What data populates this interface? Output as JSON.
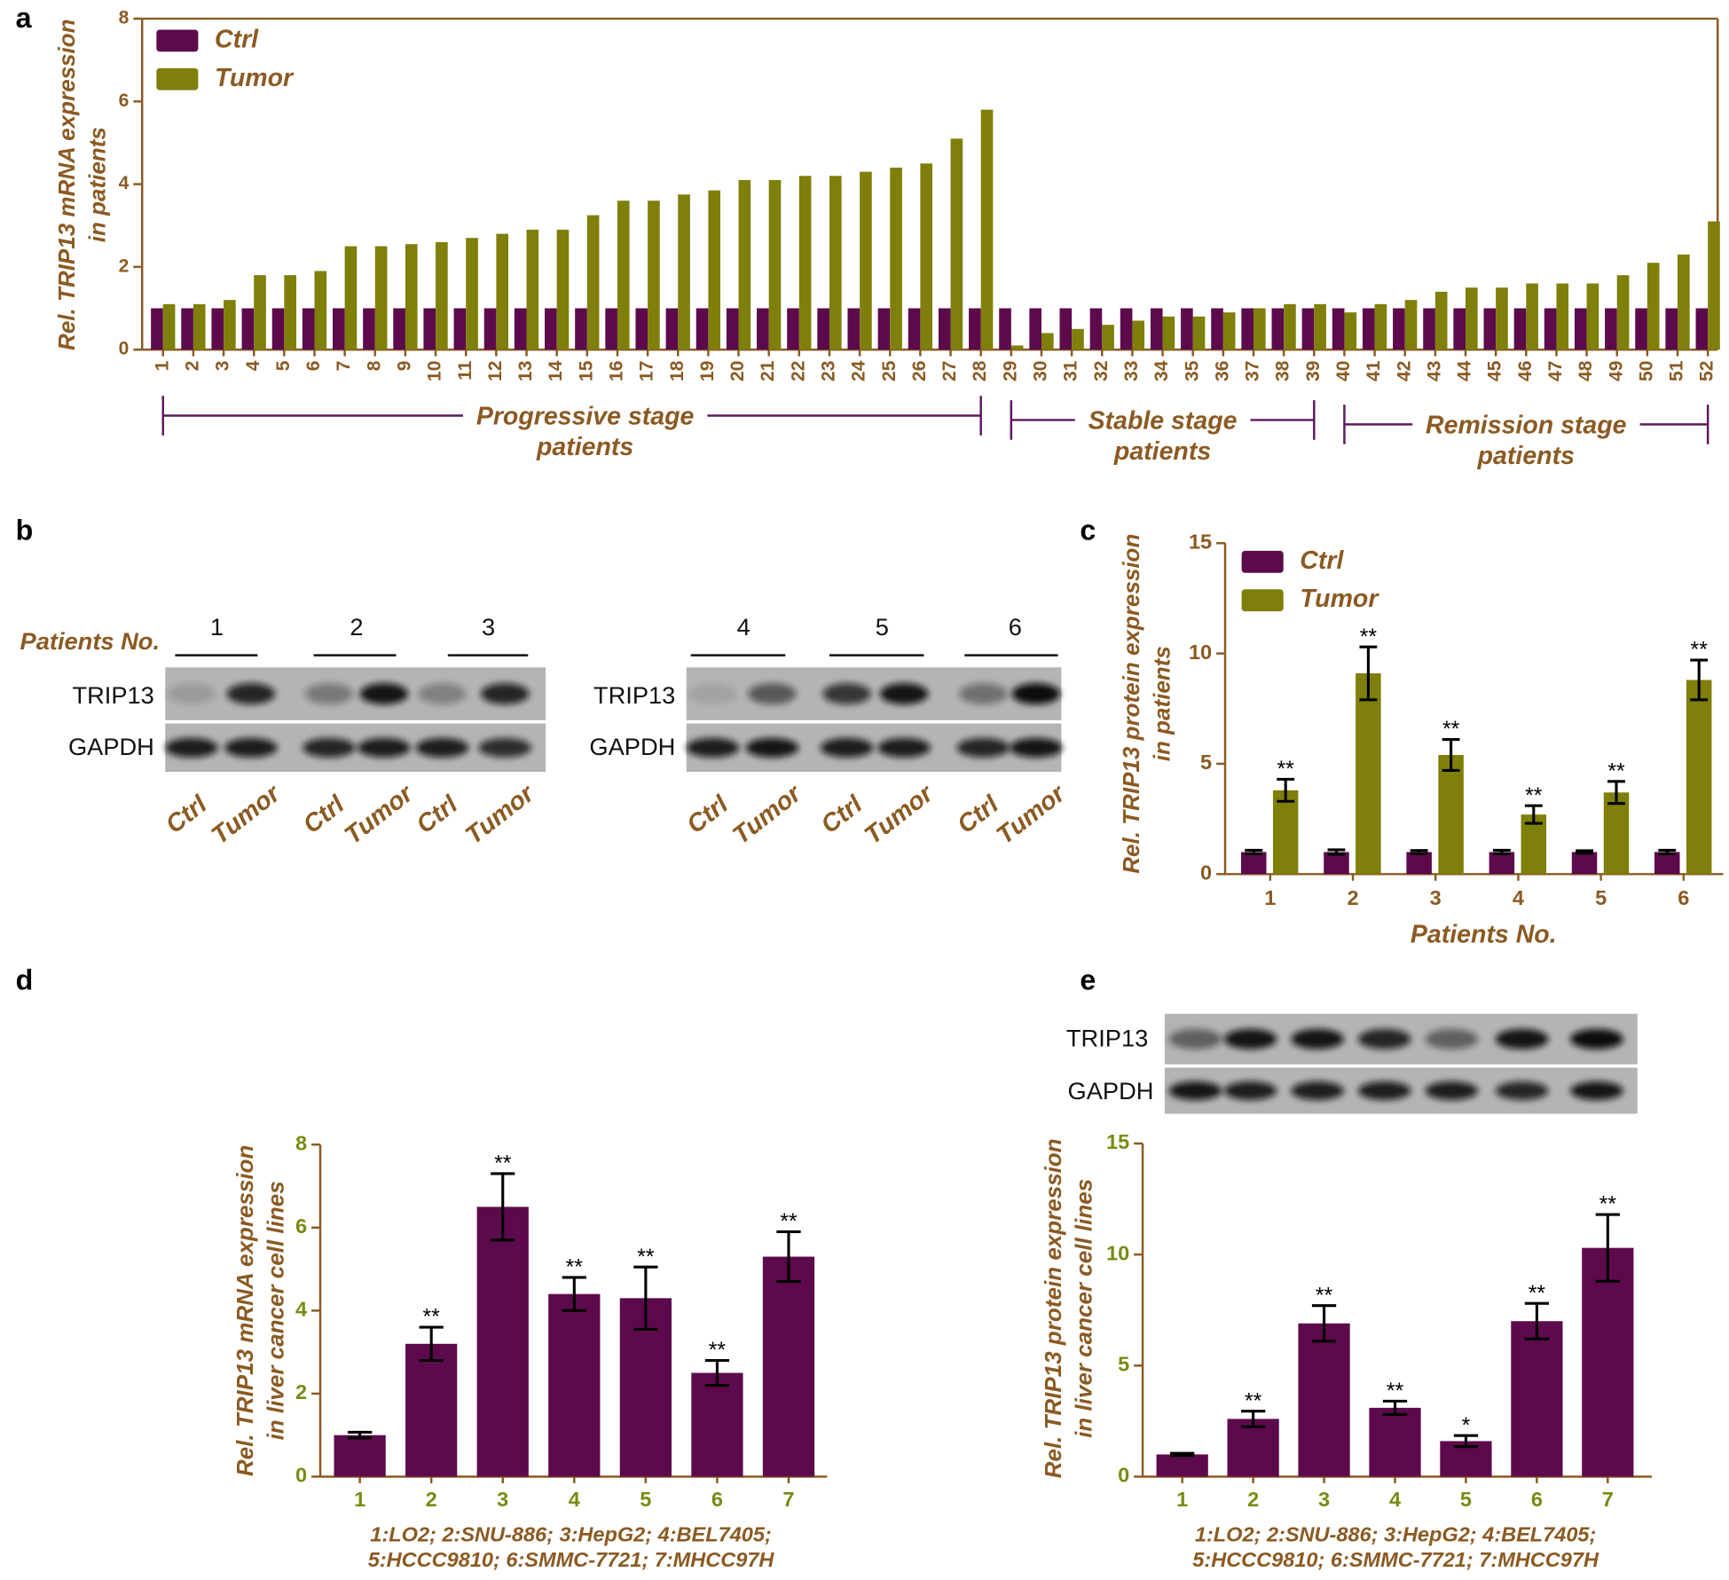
{
  "chart_data": [
    {
      "type": "bar",
      "panel": "a",
      "ylabel": [
        "Rel. TRIP13 mRNA expression",
        "in patients"
      ],
      "categories": [
        "1",
        "2",
        "3",
        "4",
        "5",
        "6",
        "7",
        "8",
        "9",
        "10",
        "11",
        "12",
        "13",
        "14",
        "15",
        "16",
        "17",
        "18",
        "19",
        "20",
        "21",
        "22",
        "23",
        "24",
        "25",
        "26",
        "27",
        "28",
        "29",
        "30",
        "31",
        "32",
        "33",
        "34",
        "35",
        "36",
        "37",
        "38",
        "39",
        "40",
        "41",
        "42",
        "43",
        "44",
        "45",
        "46",
        "47",
        "48",
        "49",
        "50",
        "51",
        "52"
      ],
      "series": [
        {
          "name": "Ctrl",
          "color": "#5c0a4c",
          "values": [
            1,
            1,
            1,
            1,
            1,
            1,
            1,
            1,
            1,
            1,
            1,
            1,
            1,
            1,
            1,
            1,
            1,
            1,
            1,
            1,
            1,
            1,
            1,
            1,
            1,
            1,
            1,
            1,
            1,
            1,
            1,
            1,
            1,
            1,
            1,
            1,
            1,
            1,
            1,
            1,
            1,
            1,
            1,
            1,
            1,
            1,
            1,
            1,
            1,
            1,
            1,
            1
          ]
        },
        {
          "name": "Tumor",
          "color": "#7f7f0b",
          "values": [
            1.1,
            1.1,
            1.2,
            1.8,
            1.8,
            1.9,
            2.5,
            2.5,
            2.55,
            2.6,
            2.7,
            2.8,
            2.9,
            2.9,
            3.25,
            3.6,
            3.6,
            3.75,
            3.85,
            4.1,
            4.1,
            4.2,
            4.2,
            4.3,
            4.4,
            4.5,
            5.1,
            5.8,
            0.1,
            0.4,
            0.5,
            0.6,
            0.7,
            0.8,
            0.8,
            0.9,
            1.0,
            1.1,
            1.1,
            0.9,
            1.1,
            1.2,
            1.4,
            1.5,
            1.5,
            1.6,
            1.6,
            1.6,
            1.8,
            2.1,
            2.3,
            3.1
          ]
        }
      ],
      "groups": [
        {
          "label": [
            "Progressive stage",
            "patients"
          ],
          "range": [
            "1",
            "28"
          ]
        },
        {
          "label": [
            "Stable stage",
            "patients"
          ],
          "range": [
            "29",
            "39"
          ]
        },
        {
          "label": [
            "Remission stage",
            "patients"
          ],
          "range": [
            "40",
            "52"
          ]
        }
      ],
      "ylim": [
        0,
        8
      ],
      "yticks": [
        0,
        2,
        4,
        6,
        8
      ],
      "axis_color": "#8b5a22",
      "tick_label_color": "#8b5a22",
      "frame": true,
      "legend": "upper left"
    },
    {
      "type": "bar",
      "panel": "c",
      "ylabel": [
        "Rel. TRIP13 protein expression",
        "in patients"
      ],
      "xlabel": "Patients No.",
      "categories": [
        "1",
        "2",
        "3",
        "4",
        "5",
        "6"
      ],
      "series": [
        {
          "name": "Ctrl",
          "color": "#5c0a4c",
          "values": [
            1,
            1,
            1,
            1,
            1,
            1
          ],
          "errors": [
            0.08,
            0.1,
            0.07,
            0.08,
            0.06,
            0.08
          ]
        },
        {
          "name": "Tumor",
          "color": "#7f7f0b",
          "values": [
            3.8,
            9.1,
            5.4,
            2.7,
            3.7,
            8.8
          ],
          "errors": [
            0.5,
            1.2,
            0.7,
            0.4,
            0.5,
            0.9
          ],
          "significance": [
            "**",
            "**",
            "**",
            "**",
            "**",
            "**"
          ]
        }
      ],
      "ylim": [
        0,
        15
      ],
      "yticks": [
        0,
        5,
        10,
        15
      ],
      "axis_color": "#8b5a22",
      "tick_label_color": "#8b5a22",
      "frame": false,
      "legend": "upper left"
    },
    {
      "type": "bar",
      "panel": "d",
      "ylabel": [
        "Rel. TRIP13 mRNA expression",
        "in liver cancer cell lines"
      ],
      "categories": [
        "1",
        "2",
        "3",
        "4",
        "5",
        "6",
        "7"
      ],
      "series": [
        {
          "color": "#5c0a4c",
          "values": [
            1.0,
            3.2,
            6.5,
            4.4,
            4.3,
            2.5,
            5.3
          ],
          "errors": [
            0.07,
            0.4,
            0.8,
            0.4,
            0.75,
            0.3,
            0.6
          ],
          "significance": [
            null,
            "**",
            "**",
            "**",
            "**",
            "**",
            "**"
          ]
        }
      ],
      "note": [
        "1:LO2; 2:SNU-886; 3:HepG2; 4:BEL7405;",
        "5:HCCC9810; 6:SMMC-7721; 7:MHCC97H"
      ],
      "ylim": [
        0,
        8
      ],
      "yticks": [
        0,
        2,
        4,
        6,
        8
      ],
      "axis_color": "#8b5a22",
      "tick_label_color": "#7a8a12",
      "frame": false
    },
    {
      "type": "bar",
      "panel": "e",
      "ylabel": [
        "Rel. TRIP13 protein expression",
        "in liver cancer cell lines"
      ],
      "categories": [
        "1",
        "2",
        "3",
        "4",
        "5",
        "6",
        "7"
      ],
      "series": [
        {
          "color": "#5c0a4c",
          "values": [
            1.0,
            2.6,
            6.9,
            3.1,
            1.6,
            7.0,
            10.3
          ],
          "errors": [
            0.05,
            0.35,
            0.8,
            0.3,
            0.25,
            0.8,
            1.5
          ],
          "significance": [
            null,
            "**",
            "**",
            "**",
            "*",
            "**",
            "**"
          ]
        }
      ],
      "note": [
        "1:LO2; 2:SNU-886; 3:HepG2; 4:BEL7405;",
        "5:HCCC9810; 6:SMMC-7721; 7:MHCC97H"
      ],
      "ylim": [
        0,
        15
      ],
      "yticks": [
        0,
        5,
        10,
        15
      ],
      "axis_color": "#8b5a22",
      "tick_label_color": "#7a8a12",
      "frame": false
    }
  ],
  "blot_b": {
    "panel": "b",
    "header": "Patients No.",
    "left": {
      "rows": [
        "TRIP13",
        "GAPDH"
      ],
      "patients": [
        "1",
        "2",
        "3"
      ],
      "lanes": [
        "Ctrl",
        "Tumor",
        "Ctrl",
        "Tumor",
        "Ctrl",
        "Tumor"
      ]
    },
    "right": {
      "rows": [
        "TRIP13",
        "GAPDH"
      ],
      "patients": [
        "4",
        "5",
        "6"
      ],
      "lanes": [
        "Ctrl",
        "Tumor",
        "Ctrl",
        "Tumor",
        "Ctrl",
        "Tumor"
      ]
    }
  },
  "blot_e": {
    "rows": [
      "TRIP13",
      "GAPDH"
    ]
  }
}
